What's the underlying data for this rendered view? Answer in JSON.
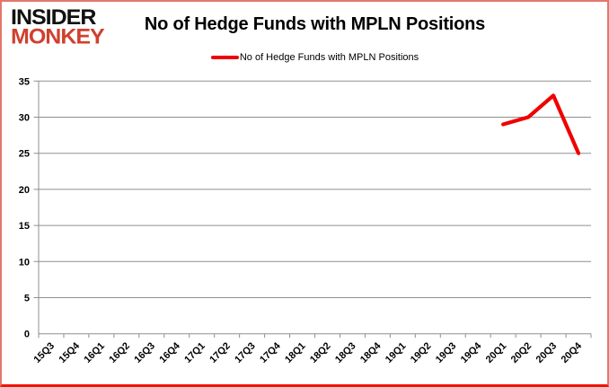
{
  "logo": {
    "line1": "INSIDER",
    "line2": "MONKEY"
  },
  "title": "No of Hedge Funds with MPLN Positions",
  "legend": {
    "label": "No of Hedge Funds with MPLN Positions",
    "color": "#f00000"
  },
  "colors": {
    "grid": "#8f8f8f",
    "axis": "#8f8f8f",
    "text": "#000000",
    "series_line": "#f00000",
    "logo_black": "#111111",
    "logo_red": "#d0402f",
    "frame_border": "#e4776c"
  },
  "chart_data": {
    "type": "line",
    "title": "No of Hedge Funds with MPLN Positions",
    "xlabel": "",
    "ylabel": "",
    "ylim": [
      0,
      35
    ],
    "ytick_step": 5,
    "grid": true,
    "legend_position": "top",
    "categories": [
      "15Q3",
      "15Q4",
      "16Q1",
      "16Q2",
      "16Q3",
      "16Q4",
      "17Q1",
      "17Q2",
      "17Q3",
      "17Q4",
      "18Q1",
      "18Q2",
      "18Q3",
      "18Q4",
      "19Q1",
      "19Q2",
      "19Q3",
      "19Q4",
      "20Q1",
      "20Q2",
      "20Q3",
      "20Q4"
    ],
    "series": [
      {
        "name": "No of Hedge Funds with MPLN Positions",
        "color": "#f00000",
        "values": [
          null,
          null,
          null,
          null,
          null,
          null,
          null,
          null,
          null,
          null,
          null,
          null,
          null,
          null,
          null,
          null,
          null,
          null,
          29,
          30,
          33,
          25
        ]
      }
    ]
  }
}
